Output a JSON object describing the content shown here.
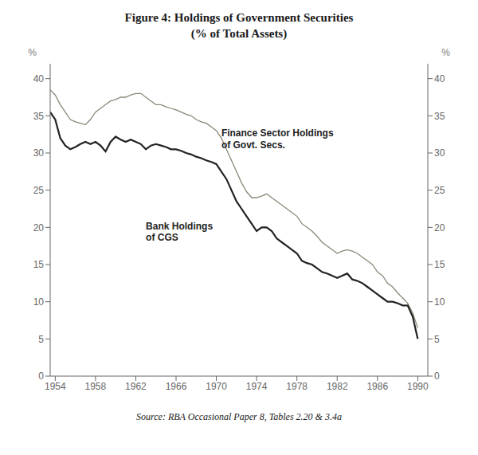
{
  "chart_data": {
    "type": "line",
    "title": "Figure 4: Holdings of Government Securities",
    "subtitle": "(% of Total Assets)",
    "source": "Source: RBA Occasional Paper 8, Tables 2.20 & 3.4a",
    "ylabel": "%",
    "y2label": "%",
    "xlim": [
      1953.5,
      1991
    ],
    "xticks": [
      1954,
      1958,
      1962,
      1966,
      1970,
      1974,
      1978,
      1982,
      1986,
      1990
    ],
    "ylim": [
      0,
      42
    ],
    "yticks": [
      0,
      5,
      10,
      15,
      20,
      25,
      30,
      35,
      40
    ],
    "y2lim": [
      0,
      42
    ],
    "y2ticks": [
      0,
      5,
      10,
      15,
      20,
      25,
      30,
      35,
      40
    ],
    "grid": false,
    "x": [
      1953.5,
      1954,
      1954.5,
      1955,
      1955.5,
      1956,
      1956.5,
      1957,
      1957.5,
      1958,
      1958.5,
      1959,
      1959.5,
      1960,
      1960.5,
      1961,
      1961.5,
      1962,
      1962.5,
      1963,
      1963.5,
      1964,
      1964.5,
      1965,
      1965.5,
      1966,
      1966.5,
      1967,
      1967.5,
      1968,
      1968.5,
      1969,
      1969.5,
      1970,
      1970.5,
      1971,
      1971.5,
      1972,
      1972.5,
      1973,
      1973.5,
      1974,
      1974.5,
      1975,
      1975.5,
      1976,
      1976.5,
      1977,
      1977.5,
      1978,
      1978.5,
      1979,
      1979.5,
      1980,
      1980.5,
      1981,
      1981.5,
      1982,
      1982.5,
      1983,
      1983.5,
      1984,
      1984.5,
      1985,
      1985.5,
      1986,
      1986.5,
      1987,
      1987.5,
      1988,
      1988.5,
      1989,
      1989.5,
      1990
    ],
    "series": [
      {
        "color": "#222222",
        "values": [
          35.5,
          34.5,
          32.0,
          31.0,
          30.5,
          30.8,
          31.2,
          31.5,
          31.2,
          31.5,
          31.0,
          30.2,
          31.5,
          32.2,
          31.8,
          31.5,
          31.8,
          31.5,
          31.2,
          30.5,
          31.0,
          31.2,
          31.0,
          30.8,
          30.5,
          30.5,
          30.3,
          30.0,
          29.8,
          29.5,
          29.3,
          29.0,
          28.8,
          28.5,
          27.5,
          26.5,
          25.0,
          23.5,
          22.5,
          21.5,
          20.5,
          19.5,
          20.0,
          20.0,
          19.5,
          18.5,
          18.0,
          17.5,
          17.0,
          16.5,
          15.5,
          15.2,
          15.0,
          14.5,
          14.0,
          13.8,
          13.5,
          13.2,
          13.5,
          13.8,
          13.0,
          12.8,
          12.5,
          12.0,
          11.5,
          11.0,
          10.5,
          10.0,
          10.0,
          9.8,
          9.5,
          9.5,
          8.0,
          5.0
        ]
      },
      {
        "color": "#888878",
        "values": [
          38.5,
          37.8,
          36.5,
          35.5,
          34.5,
          34.2,
          34.0,
          33.8,
          34.5,
          35.5,
          36.0,
          36.5,
          37.0,
          37.2,
          37.5,
          37.5,
          37.8,
          38.0,
          38.0,
          37.5,
          37.0,
          36.5,
          36.5,
          36.2,
          36.0,
          35.8,
          35.5,
          35.2,
          35.0,
          34.5,
          34.2,
          34.0,
          33.5,
          33.0,
          32.0,
          30.5,
          29.0,
          27.5,
          26.0,
          24.8,
          24.0,
          24.0,
          24.2,
          24.5,
          24.0,
          23.5,
          23.0,
          22.5,
          22.0,
          21.5,
          20.5,
          20.0,
          19.5,
          18.8,
          18.0,
          17.5,
          17.0,
          16.5,
          16.8,
          17.0,
          16.8,
          16.5,
          16.0,
          15.5,
          15.0,
          14.0,
          13.5,
          12.5,
          12.0,
          11.2,
          10.5,
          9.8,
          8.5,
          6.5
        ]
      }
    ],
    "annotations": [
      {
        "text": "Bank Holdings\nof CGS",
        "x": 1963.0,
        "y": 21.0,
        "color": "#222222"
      },
      {
        "text": "Finance Sector Holdings\nof Govt. Secs.",
        "x": 1970.5,
        "y": 33.5,
        "color": "#222222"
      }
    ]
  }
}
